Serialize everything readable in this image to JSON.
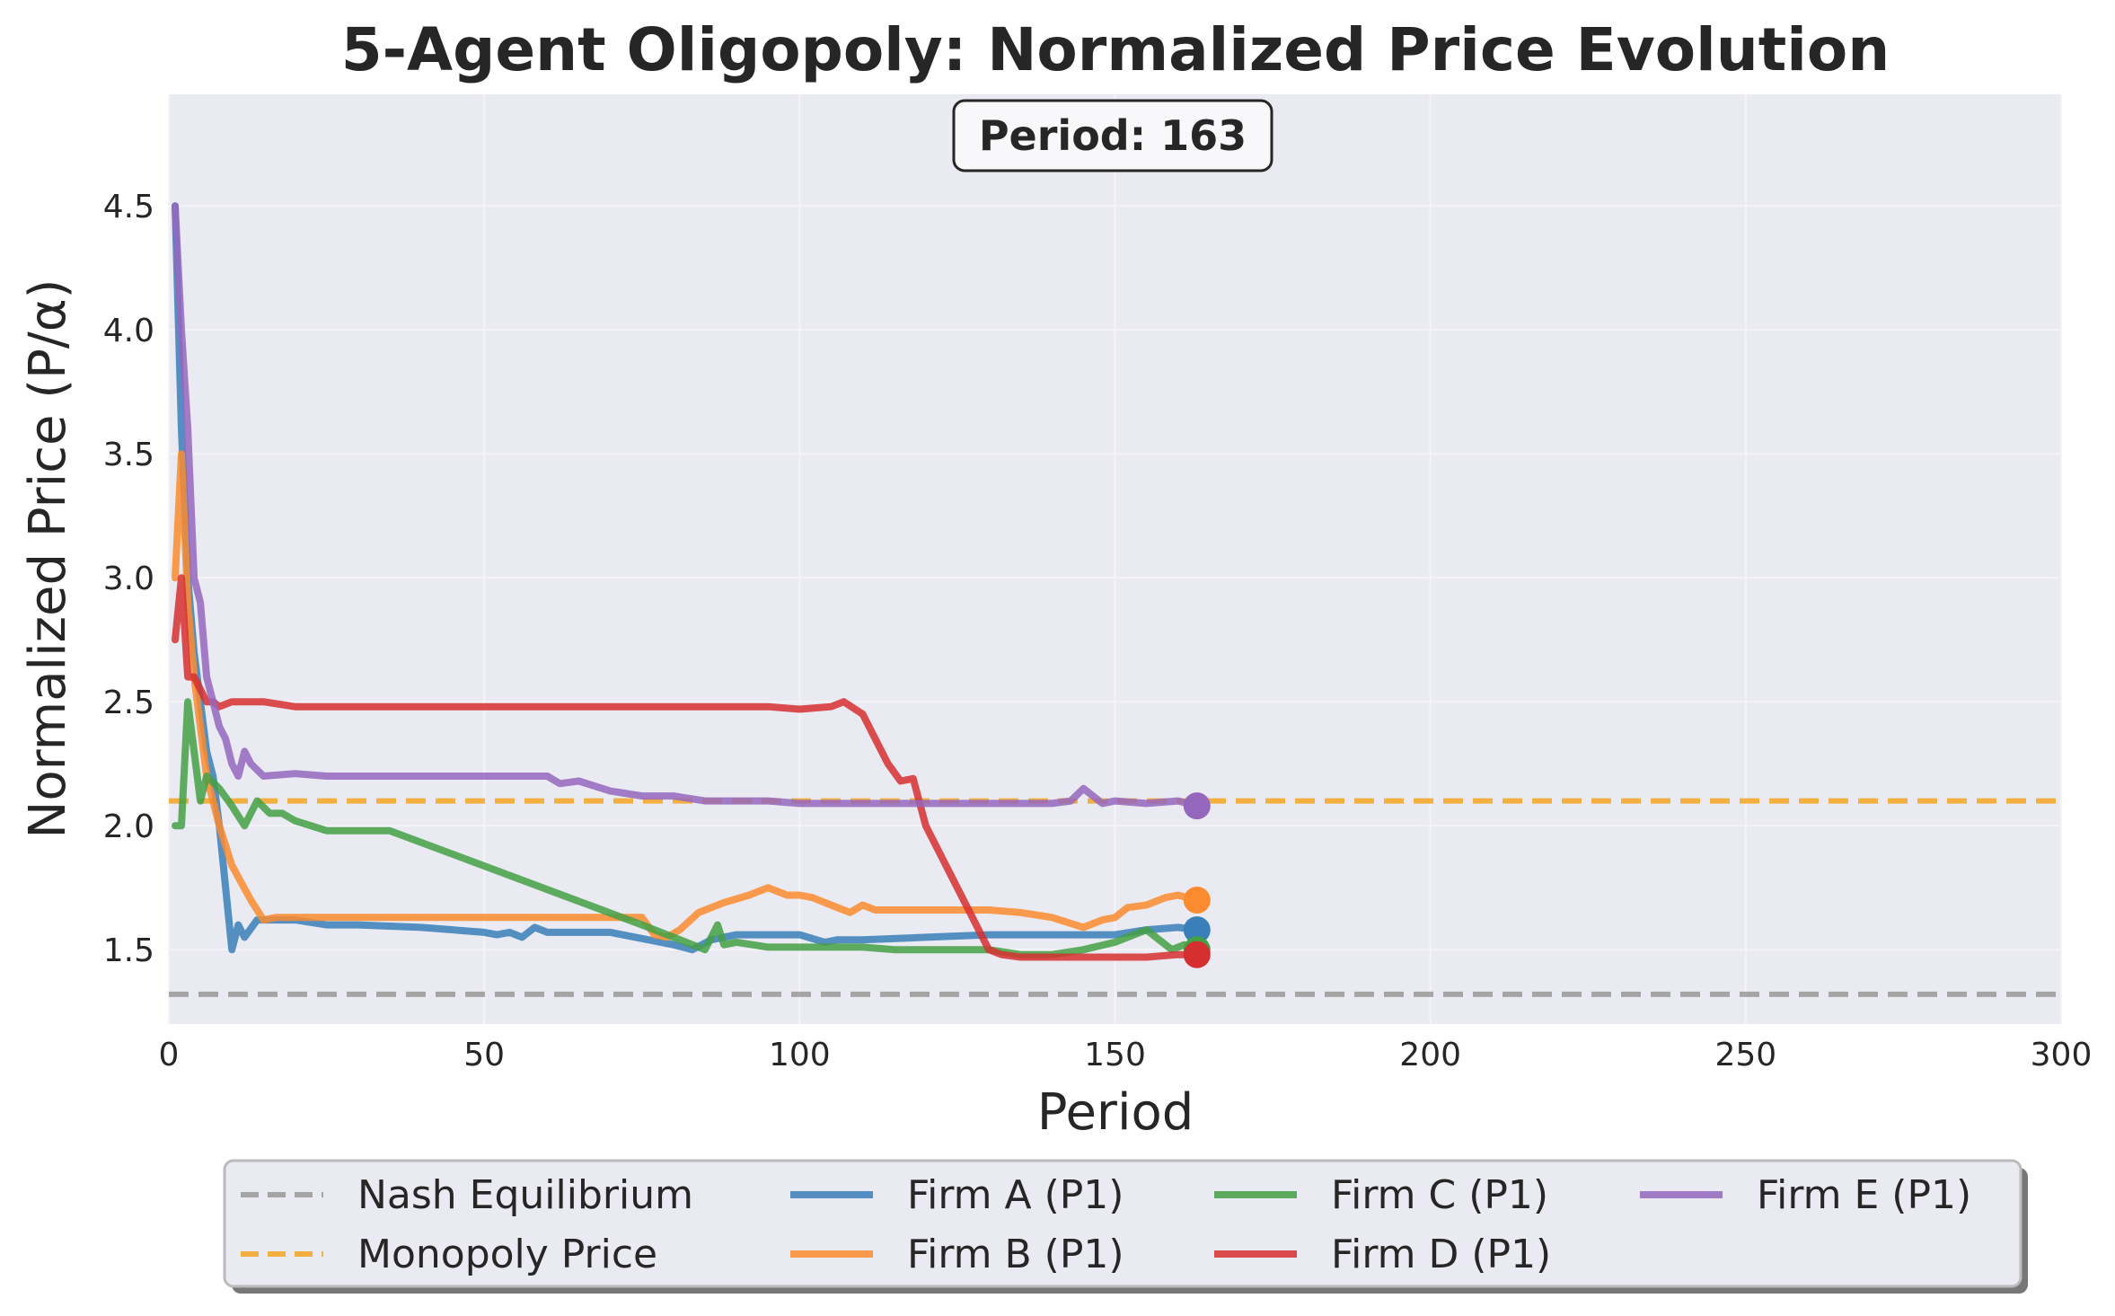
{
  "chart_data": {
    "type": "line",
    "title": "5-Agent Oligopoly: Normalized Price Evolution",
    "xlabel": "Period",
    "ylabel": "Normalized Price (P/α)",
    "xlim": [
      0,
      300
    ],
    "ylim": [
      1.2,
      4.95
    ],
    "xticks": [
      0,
      50,
      100,
      150,
      200,
      250,
      300
    ],
    "yticks": [
      1.5,
      2.0,
      2.5,
      3.0,
      3.5,
      4.0,
      4.5
    ],
    "grid": true,
    "legend_position": "bottom-center",
    "period_label": "Period: 163",
    "reference_lines": [
      {
        "name": "Nash Equilibrium",
        "y": 1.32,
        "color": "#999999",
        "dashed": true
      },
      {
        "name": "Monopoly Price",
        "y": 2.1,
        "color": "#f5a623",
        "dashed": true
      }
    ],
    "series": [
      {
        "name": "Firm A (P1)",
        "color": "#3a7fba",
        "x": [
          1,
          2,
          3,
          4,
          5,
          6,
          7,
          8,
          10,
          11,
          12,
          14,
          16,
          20,
          25,
          30,
          40,
          50,
          52,
          54,
          56,
          58,
          60,
          70,
          80,
          83,
          86,
          90,
          100,
          104,
          106,
          110,
          120,
          130,
          140,
          150,
          155,
          160,
          163
        ],
        "y": [
          4.5,
          3.6,
          3.0,
          2.7,
          2.5,
          2.3,
          2.2,
          2.0,
          1.5,
          1.6,
          1.55,
          1.62,
          1.62,
          1.62,
          1.6,
          1.6,
          1.59,
          1.57,
          1.56,
          1.57,
          1.55,
          1.59,
          1.57,
          1.57,
          1.52,
          1.5,
          1.54,
          1.56,
          1.56,
          1.53,
          1.54,
          1.54,
          1.55,
          1.56,
          1.56,
          1.56,
          1.58,
          1.59,
          1.58
        ]
      },
      {
        "name": "Firm B (P1)",
        "color": "#fb8b2e",
        "x": [
          1,
          2,
          3,
          4,
          5,
          6,
          8,
          10,
          13,
          15,
          17,
          20,
          30,
          50,
          75,
          77,
          79,
          81,
          84,
          88,
          92,
          95,
          98,
          100,
          102,
          105,
          108,
          110,
          112,
          120,
          125,
          130,
          135,
          140,
          145,
          148,
          150,
          152,
          155,
          158,
          160,
          163
        ],
        "y": [
          3.0,
          3.5,
          2.9,
          2.6,
          2.4,
          2.2,
          2.0,
          1.84,
          1.7,
          1.62,
          1.63,
          1.63,
          1.63,
          1.63,
          1.63,
          1.56,
          1.55,
          1.58,
          1.65,
          1.69,
          1.72,
          1.75,
          1.72,
          1.72,
          1.71,
          1.68,
          1.65,
          1.68,
          1.66,
          1.66,
          1.66,
          1.66,
          1.65,
          1.63,
          1.59,
          1.62,
          1.63,
          1.67,
          1.68,
          1.71,
          1.72,
          1.7
        ]
      },
      {
        "name": "Firm C (P1)",
        "color": "#44a044",
        "x": [
          1,
          2,
          3,
          4,
          5,
          6,
          8,
          10,
          12,
          14,
          16,
          18,
          20,
          25,
          30,
          35,
          75,
          80,
          85,
          86,
          87,
          88,
          90,
          95,
          100,
          105,
          110,
          115,
          120,
          125,
          130,
          135,
          140,
          145,
          150,
          155,
          157,
          159,
          161,
          163
        ],
        "y": [
          2.0,
          2.0,
          2.5,
          2.3,
          2.1,
          2.2,
          2.15,
          2.08,
          2.0,
          2.1,
          2.05,
          2.05,
          2.02,
          1.98,
          1.98,
          1.98,
          1.6,
          1.55,
          1.5,
          1.55,
          1.6,
          1.52,
          1.53,
          1.51,
          1.51,
          1.51,
          1.51,
          1.5,
          1.5,
          1.5,
          1.5,
          1.48,
          1.48,
          1.5,
          1.53,
          1.58,
          1.54,
          1.5,
          1.52,
          1.5
        ]
      },
      {
        "name": "Firm D (P1)",
        "color": "#d62f2f",
        "x": [
          1,
          2,
          3,
          4,
          5,
          6,
          7,
          8,
          10,
          12,
          15,
          20,
          30,
          50,
          55,
          60,
          70,
          80,
          85,
          90,
          95,
          100,
          105,
          107,
          110,
          112,
          114,
          116,
          118,
          120,
          125,
          130,
          132,
          135,
          140,
          145,
          150,
          155,
          160,
          163
        ],
        "y": [
          2.75,
          3.0,
          2.6,
          2.6,
          2.55,
          2.5,
          2.5,
          2.48,
          2.5,
          2.5,
          2.5,
          2.48,
          2.48,
          2.48,
          2.48,
          2.48,
          2.48,
          2.48,
          2.48,
          2.48,
          2.48,
          2.47,
          2.48,
          2.5,
          2.45,
          2.35,
          2.25,
          2.18,
          2.19,
          2.0,
          1.75,
          1.5,
          1.48,
          1.47,
          1.47,
          1.47,
          1.47,
          1.47,
          1.48,
          1.48
        ]
      },
      {
        "name": "Firm E (P1)",
        "color": "#9467bd",
        "x": [
          1,
          2,
          3,
          4,
          5,
          6,
          7,
          8,
          9,
          10,
          11,
          12,
          13,
          15,
          20,
          25,
          30,
          40,
          50,
          52,
          55,
          60,
          62,
          65,
          70,
          75,
          80,
          85,
          90,
          95,
          100,
          110,
          120,
          130,
          140,
          143,
          145,
          148,
          150,
          155,
          160,
          163
        ],
        "y": [
          4.5,
          4.0,
          3.6,
          3.0,
          2.9,
          2.6,
          2.5,
          2.4,
          2.35,
          2.25,
          2.2,
          2.3,
          2.25,
          2.2,
          2.21,
          2.2,
          2.2,
          2.2,
          2.2,
          2.2,
          2.2,
          2.2,
          2.17,
          2.18,
          2.14,
          2.12,
          2.12,
          2.1,
          2.1,
          2.1,
          2.09,
          2.09,
          2.09,
          2.09,
          2.09,
          2.1,
          2.15,
          2.09,
          2.1,
          2.09,
          2.1,
          2.08
        ]
      }
    ]
  }
}
